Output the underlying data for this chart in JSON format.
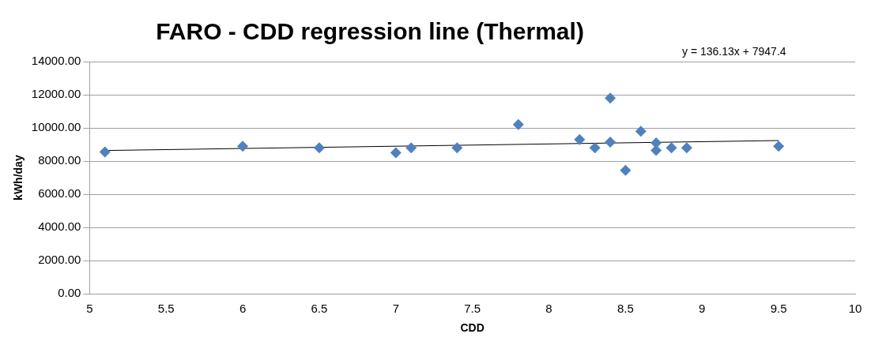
{
  "chart_data": {
    "type": "scatter",
    "title": "FARO - CDD regression line (Thermal)",
    "xlabel": "CDD",
    "ylabel": "kWh/day",
    "annotations": [
      "y = 136.13x + 7947.4"
    ],
    "series": [
      {
        "type": "scatter",
        "color": "#4f81bd",
        "marker": "diamond",
        "x": [
          5.1,
          6.0,
          6.5,
          7.0,
          7.1,
          7.4,
          7.8,
          8.2,
          8.3,
          8.4,
          8.4,
          8.5,
          8.6,
          8.7,
          8.7,
          8.8,
          8.9,
          9.5
        ],
        "values": [
          8550,
          8900,
          8800,
          8500,
          8800,
          8800,
          10200,
          9300,
          8800,
          11800,
          9150,
          7450,
          9800,
          9100,
          8650,
          8800,
          8800,
          8900
        ]
      },
      {
        "type": "line",
        "color": "#000000",
        "marker": "none",
        "x": [
          5.1,
          9.5
        ],
        "values": [
          8640,
          9240
        ]
      }
    ],
    "xlim": [
      5,
      10
    ],
    "xticks": [
      5,
      5.5,
      6,
      6.5,
      7,
      7.5,
      8,
      8.5,
      9,
      9.5,
      10
    ],
    "ylim": [
      0,
      14000
    ],
    "yticks": [
      {
        "value": 0,
        "label": "0.00"
      },
      {
        "value": 2000,
        "label": "2000.00"
      },
      {
        "value": 4000,
        "label": "4000.00"
      },
      {
        "value": 6000,
        "label": "6000.00"
      },
      {
        "value": 8000,
        "label": "8000.00"
      },
      {
        "value": 10000,
        "label": "10000.00"
      },
      {
        "value": 12000,
        "label": "12000.00"
      },
      {
        "value": 14000,
        "label": "14000.00"
      }
    ],
    "grid": "y",
    "legend": false
  }
}
